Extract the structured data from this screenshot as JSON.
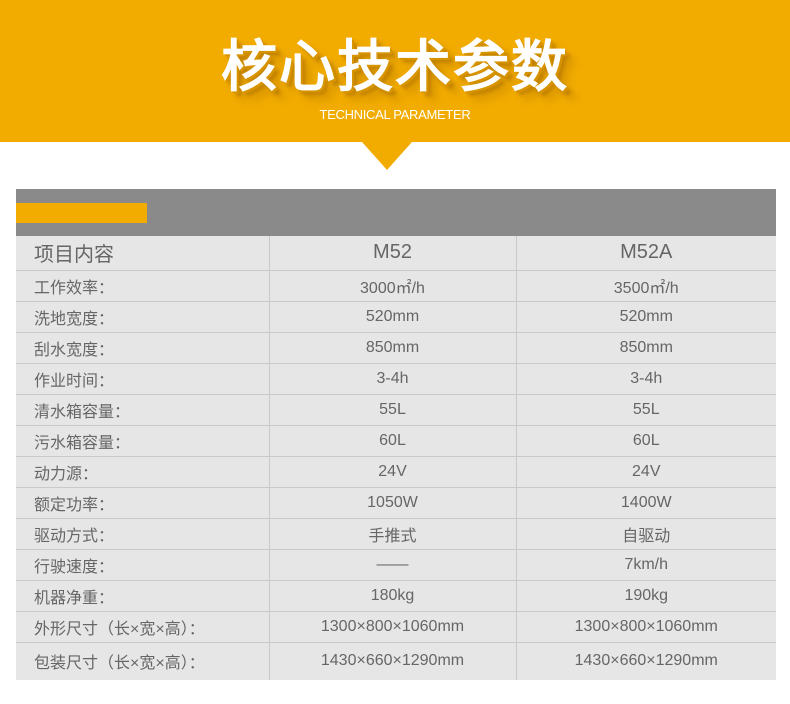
{
  "header": {
    "title": "核心技术参数",
    "subtitle": "TECHNICAL PARAMETER"
  },
  "colors": {
    "accent": "#f2ac00",
    "bar": "#8a8a8a",
    "table_bg": "#e6e6e6"
  },
  "table": {
    "headers": [
      "项目内容",
      "M52",
      "M52A"
    ],
    "rows": [
      [
        "工作效率：",
        "3000㎡/h",
        "3500㎡/h"
      ],
      [
        "洗地宽度：",
        "520mm",
        "520mm"
      ],
      [
        "刮水宽度：",
        "850mm",
        "850mm"
      ],
      [
        "作业时间：",
        "3-4h",
        "3-4h"
      ],
      [
        "清水箱容量：",
        "55L",
        "55L"
      ],
      [
        "污水箱容量：",
        "60L",
        "60L"
      ],
      [
        "动力源：",
        "24V",
        "24V"
      ],
      [
        "额定功率：",
        "1050W",
        "1400W"
      ],
      [
        "驱动方式：",
        "手推式",
        "自驱动"
      ],
      [
        "行驶速度：",
        "——",
        "7km/h"
      ],
      [
        "机器净重：",
        "180kg",
        "190kg"
      ],
      [
        "外形尺寸（长×宽×高）：",
        "1300×800×1060mm",
        "1300×800×1060mm"
      ],
      [
        "包装尺寸（长×宽×高）：",
        "1430×660×1290mm",
        "1430×660×1290mm"
      ]
    ]
  }
}
